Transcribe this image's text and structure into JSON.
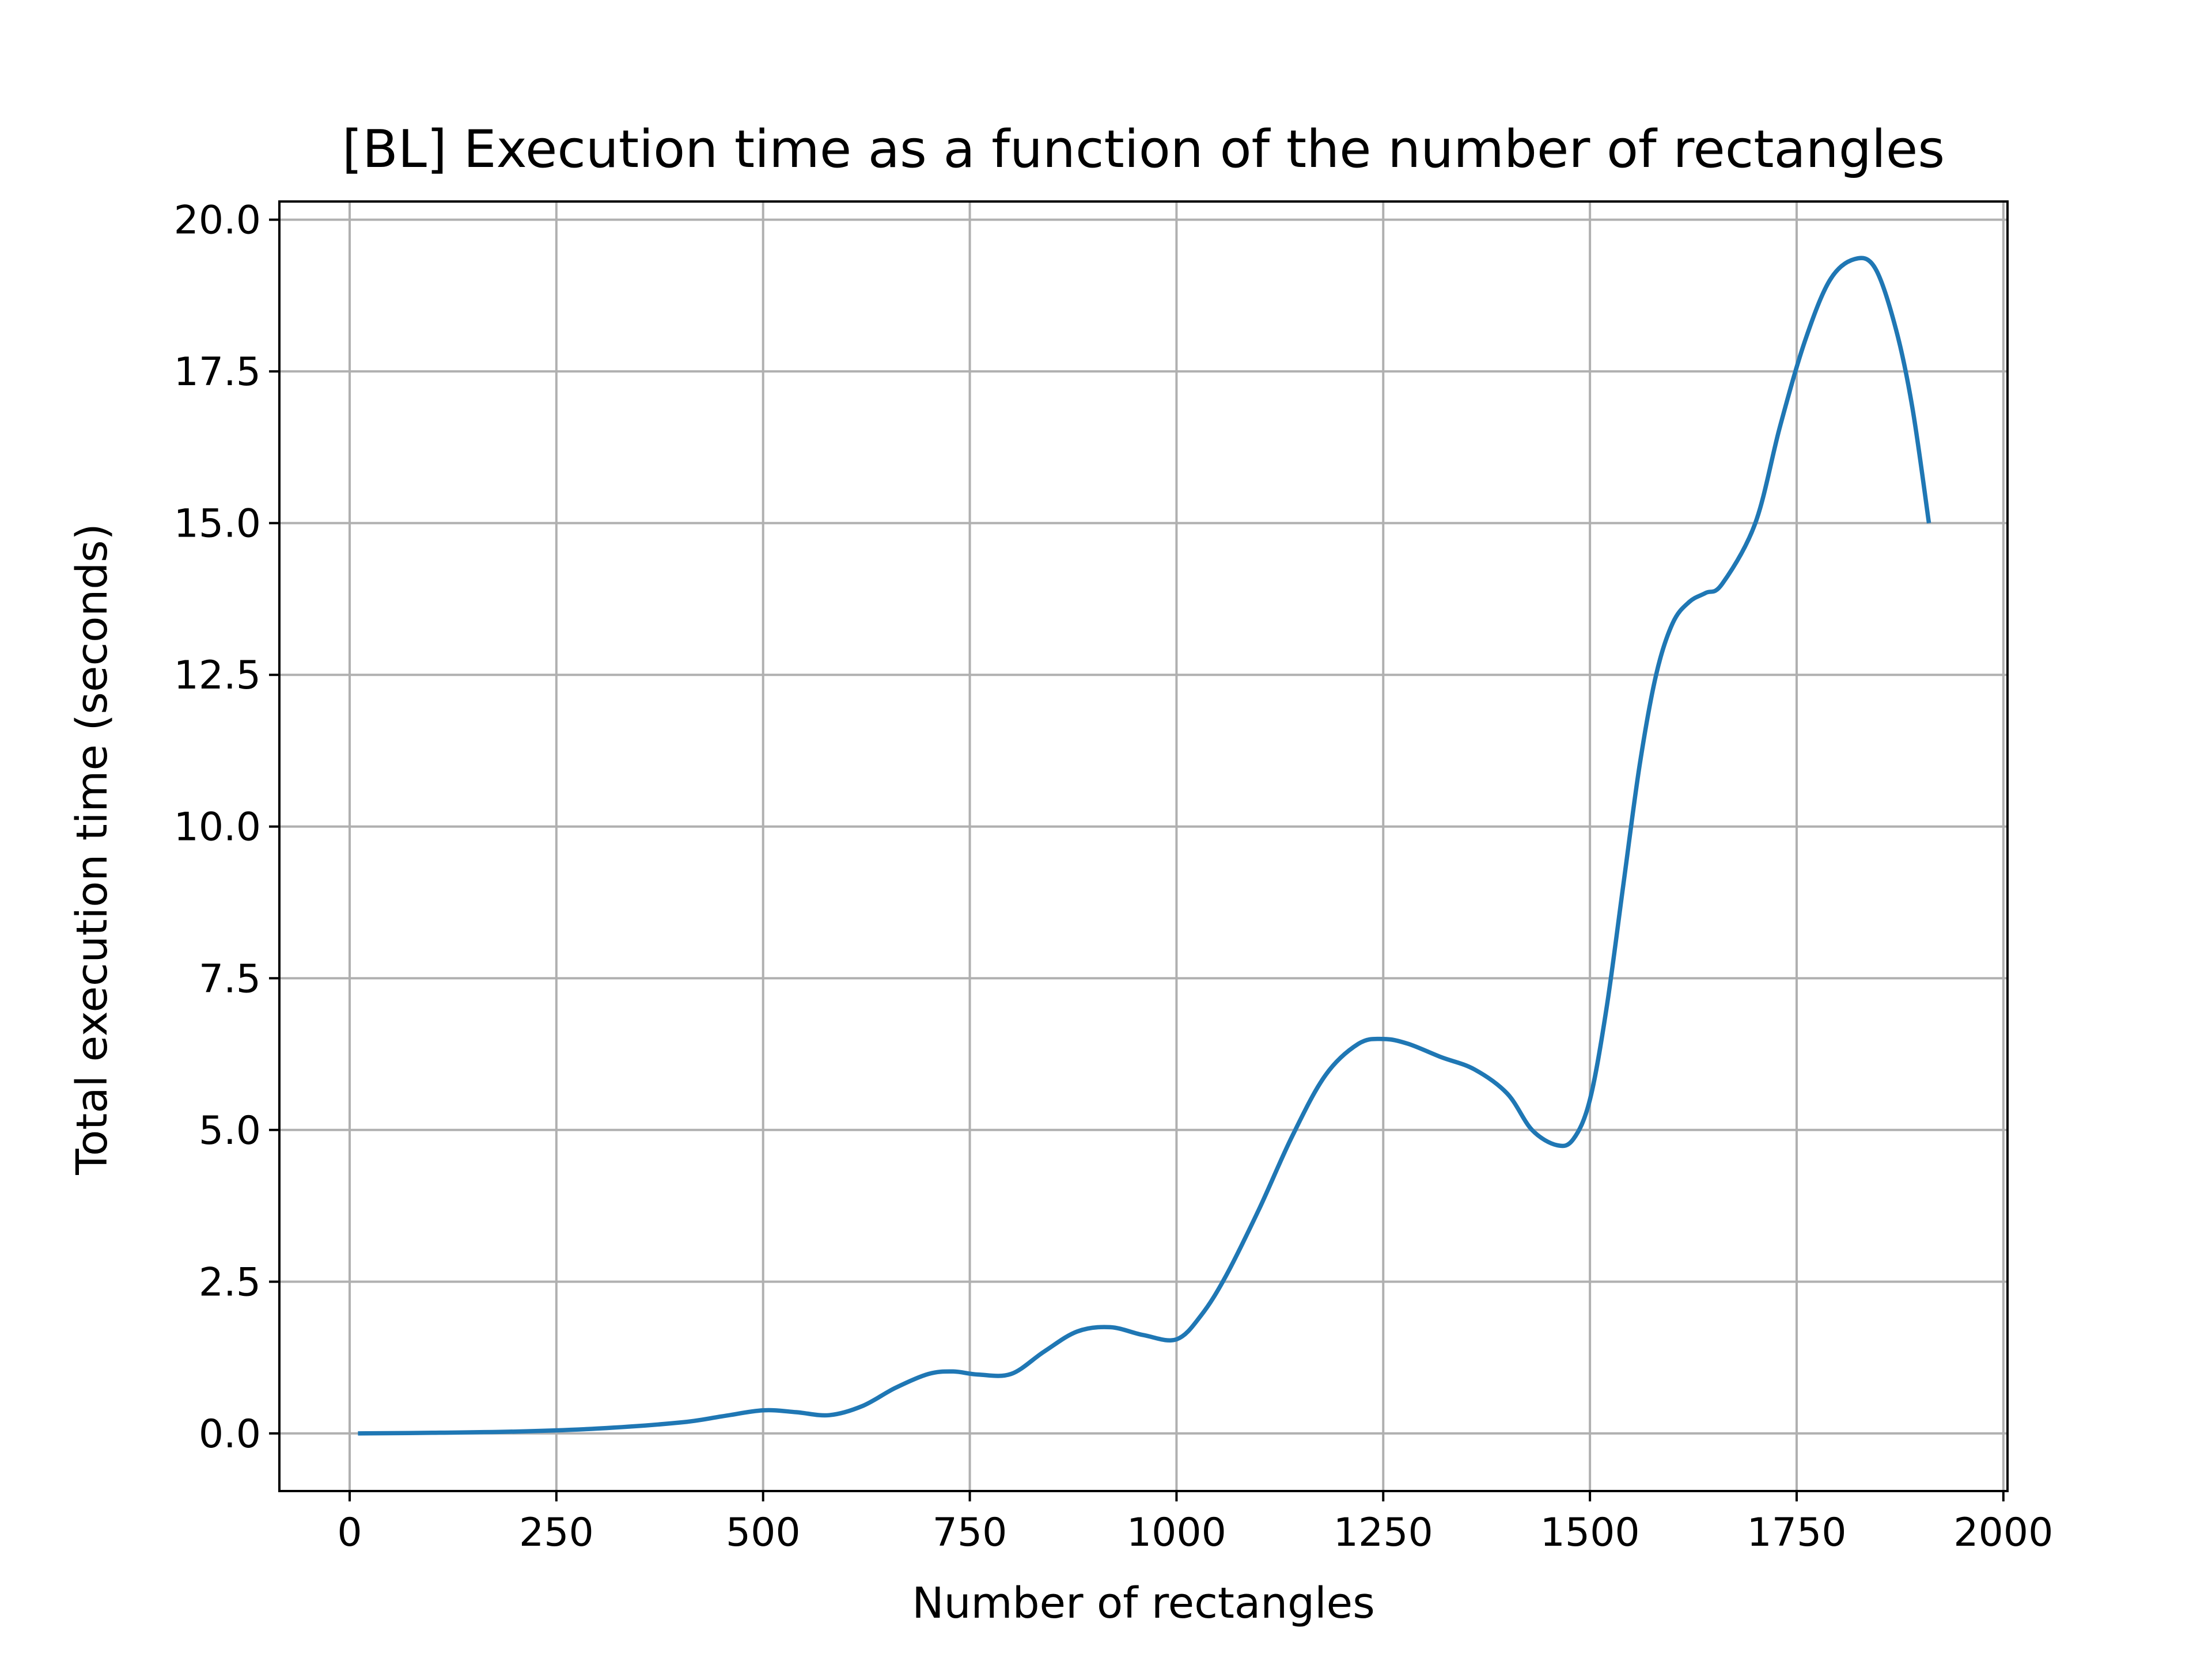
{
  "chart_data": {
    "type": "line",
    "title": "[BL] Execution time as a function of the number of rectangles",
    "xlabel": "Number of rectangles",
    "ylabel": "Total execution time (seconds)",
    "xlim": [
      -85,
      2005
    ],
    "ylim": [
      -0.95,
      20.3
    ],
    "xticks": [
      0,
      250,
      500,
      750,
      1000,
      1250,
      1500,
      1750,
      2000
    ],
    "xtick_labels": [
      "0",
      "250",
      "500",
      "750",
      "1000",
      "1250",
      "1500",
      "1750",
      "2000"
    ],
    "yticks": [
      0,
      2.5,
      5,
      7.5,
      10,
      12.5,
      15,
      17.5,
      20
    ],
    "ytick_labels": [
      "0.0",
      "2.5",
      "5.0",
      "7.5",
      "10.0",
      "12.5",
      "15.0",
      "17.5",
      "20.0"
    ],
    "grid": true,
    "line_color": "#1f77b4",
    "series": [
      {
        "x": [
          10,
          100,
          200,
          300,
          400,
          450,
          500,
          540,
          580,
          620,
          660,
          700,
          730,
          760,
          800,
          840,
          880,
          920,
          960,
          1000,
          1030,
          1060,
          1100,
          1140,
          1180,
          1220,
          1250,
          1280,
          1320,
          1360,
          1400,
          1430,
          1460,
          1480,
          1500,
          1520,
          1540,
          1560,
          1580,
          1600,
          1620,
          1640,
          1660,
          1700,
          1730,
          1760,
          1790,
          1820,
          1845,
          1870,
          1890,
          1910
        ],
        "y": [
          0.0,
          0.01,
          0.03,
          0.08,
          0.18,
          0.28,
          0.38,
          0.35,
          0.3,
          0.45,
          0.75,
          0.98,
          1.02,
          0.97,
          0.98,
          1.35,
          1.68,
          1.75,
          1.62,
          1.55,
          1.95,
          2.6,
          3.7,
          4.9,
          5.9,
          6.42,
          6.5,
          6.42,
          6.2,
          6.0,
          5.6,
          5.0,
          4.75,
          4.85,
          5.5,
          7.0,
          9.0,
          11.0,
          12.5,
          13.35,
          13.7,
          13.85,
          14.0,
          15.0,
          16.6,
          18.0,
          19.0,
          19.35,
          19.2,
          18.2,
          16.9,
          15.0
        ]
      }
    ]
  }
}
